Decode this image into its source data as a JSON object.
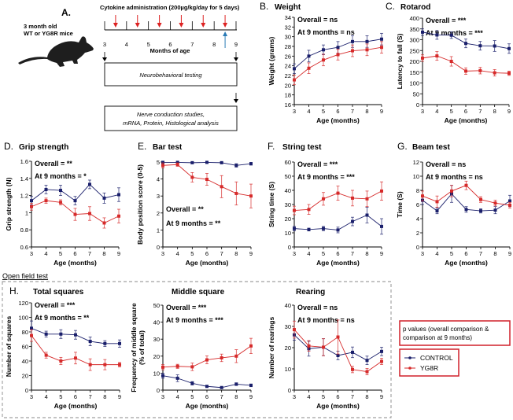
{
  "panel_a": {
    "letter": "A.",
    "mouse_label_line1": "3 month old",
    "mouse_label_line2": "WT or YG8R mice",
    "cytokine_title": "Cytokine administration (200µg/kg/day for 5 days)",
    "timeline_ticks": [
      "3",
      "4",
      "5",
      "6",
      "7",
      "8",
      "9"
    ],
    "timeline_label": "Months of age",
    "box1": "Neurobehavioral testing",
    "box2_line1": "Nerve conduction studies,",
    "box2_line2": "mRNA, Protein, Histological analysis",
    "icons": [
      "mouse-silhouette-icon",
      "red-down-arrow-icon",
      "blue-up-arrow-icon",
      "black-down-arrow-icon"
    ]
  },
  "open_field_label": "Open field test",
  "legend": {
    "note_line1": "p values (overall comparison &",
    "note_line2": "comparison at 9 months)",
    "series": [
      {
        "name": "CONTROL",
        "color": "#1a1f6b"
      },
      {
        "name": "YG8R",
        "color": "#d62a2a"
      }
    ],
    "box_color": "#d0202a"
  },
  "chart_data": [
    {
      "id": "B",
      "letter": "B.",
      "type": "line",
      "title": "Weight",
      "xlabel": "Age (months)",
      "ylabel": "Weight (grams)",
      "x": [
        3,
        4,
        5,
        6,
        7,
        8,
        9
      ],
      "ylim": [
        16,
        34
      ],
      "yticks": [
        16,
        18,
        20,
        22,
        24,
        26,
        28,
        30,
        32,
        34
      ],
      "annotations": [
        "Overall = ns",
        "At 9 months = ns"
      ],
      "series": [
        {
          "name": "CONTROL",
          "values": [
            23.4,
            26.0,
            27.3,
            27.8,
            29.0,
            29.0,
            29.5
          ],
          "err": [
            1.0,
            1.2,
            1.0,
            1.2,
            1.2,
            1.2,
            1.2
          ]
        },
        {
          "name": "YG8R",
          "values": [
            21.1,
            23.5,
            25.2,
            26.3,
            27.1,
            27.3,
            27.8
          ],
          "err": [
            1.0,
            1.1,
            1.2,
            1.1,
            1.2,
            1.2,
            1.2
          ]
        }
      ]
    },
    {
      "id": "C",
      "letter": "C.",
      "type": "line",
      "title": "Rotarod",
      "xlabel": "Age (months)",
      "ylabel": "Latency to fall (S)",
      "x": [
        3,
        4,
        5,
        6,
        7,
        8,
        9
      ],
      "ylim": [
        0,
        400
      ],
      "yticks": [
        0,
        50,
        100,
        150,
        200,
        250,
        300,
        350,
        400
      ],
      "annotations": [
        "Overall = ***",
        "At 9 months = ***"
      ],
      "series": [
        {
          "name": "CONTROL",
          "values": [
            335,
            322,
            321,
            283,
            272,
            271,
            259
          ],
          "err": [
            15,
            20,
            15,
            20,
            20,
            25,
            22
          ]
        },
        {
          "name": "YG8R",
          "values": [
            215,
            225,
            200,
            155,
            157,
            147,
            145
          ],
          "err": [
            15,
            20,
            22,
            15,
            15,
            15,
            10
          ]
        }
      ]
    },
    {
      "id": "D",
      "letter": "D.",
      "type": "line",
      "title": "Grip strength",
      "xlabel": "Age (months)",
      "ylabel": "Grip strength (N)",
      "x": [
        3,
        4,
        5,
        6,
        7,
        8,
        9
      ],
      "ylim": [
        0.6,
        1.6
      ],
      "yticks": [
        0.6,
        0.8,
        1.0,
        1.2,
        1.4,
        1.6
      ],
      "annotations": [
        "Overall = **",
        "At 9 months = *"
      ],
      "series": [
        {
          "name": "CONTROL",
          "values": [
            1.14,
            1.27,
            1.26,
            1.14,
            1.33,
            1.17,
            1.21
          ],
          "err": [
            0.05,
            0.05,
            0.06,
            0.05,
            0.05,
            0.06,
            0.08
          ]
        },
        {
          "name": "YG8R",
          "values": [
            1.07,
            1.14,
            1.12,
            0.98,
            0.99,
            0.88,
            0.96
          ],
          "err": [
            0.04,
            0.03,
            0.03,
            0.07,
            0.08,
            0.06,
            0.08
          ]
        }
      ]
    },
    {
      "id": "E",
      "letter": "E.",
      "type": "line",
      "title": "Bar test",
      "xlabel": "Age (months)",
      "ylabel": "Body position score (0-5)",
      "x": [
        3,
        4,
        5,
        6,
        7,
        8,
        9
      ],
      "ylim": [
        0,
        5
      ],
      "yticks": [
        0,
        1,
        2,
        3,
        4,
        5
      ],
      "annotations": [
        "Overall = **",
        "At 9 months = **"
      ],
      "series": [
        {
          "name": "CONTROL",
          "values": [
            4.98,
            4.98,
            4.96,
            4.98,
            4.96,
            4.8,
            4.9
          ],
          "err": [
            0.02,
            0.02,
            0.03,
            0.02,
            0.03,
            0.1,
            0.08
          ]
        },
        {
          "name": "YG8R",
          "values": [
            4.8,
            4.85,
            4.1,
            3.98,
            3.55,
            3.15,
            3.0
          ],
          "err": [
            0.15,
            0.1,
            0.28,
            0.35,
            0.65,
            0.68,
            0.7
          ]
        }
      ]
    },
    {
      "id": "F",
      "letter": "F.",
      "type": "line",
      "title": "String test",
      "xlabel": "Age (months)",
      "ylabel": "String time (S)",
      "x": [
        3,
        4,
        5,
        6,
        7,
        8,
        9
      ],
      "ylim": [
        0,
        60
      ],
      "yticks": [
        0,
        10,
        20,
        30,
        40,
        50,
        60
      ],
      "annotations": [
        "Overall = ***",
        "At 9 months = ***"
      ],
      "series": [
        {
          "name": "CONTROL",
          "values": [
            13,
            12.3,
            13,
            12,
            18,
            22.5,
            14.5
          ],
          "err": [
            1.5,
            1,
            1.5,
            2,
            3,
            5.5,
            5.5
          ]
        },
        {
          "name": "YG8R",
          "values": [
            25.8,
            26.5,
            34,
            38,
            34.5,
            34,
            39.5
          ],
          "err": [
            3,
            3.5,
            4.5,
            5,
            5.5,
            5.5,
            6.5
          ]
        }
      ]
    },
    {
      "id": "G",
      "letter": "G.",
      "type": "line",
      "title": "Beam test",
      "xlabel": "Age (months)",
      "ylabel": "Time (S)",
      "x": [
        3,
        4,
        5,
        6,
        7,
        8,
        9
      ],
      "ylim": [
        0,
        12
      ],
      "yticks": [
        0,
        2,
        4,
        6,
        8,
        10,
        12
      ],
      "annotations": [
        "Overall = ns",
        "At 9 months = ns"
      ],
      "series": [
        {
          "name": "CONTROL",
          "values": [
            6.6,
            5.1,
            7.5,
            5.3,
            5.1,
            5.2,
            6.5
          ],
          "err": [
            0.6,
            0.4,
            1.2,
            0.4,
            0.3,
            0.5,
            0.8
          ]
        },
        {
          "name": "YG8R",
          "values": [
            7.2,
            6.4,
            7.9,
            8.7,
            6.7,
            6.2,
            5.9
          ],
          "err": [
            0.7,
            0.8,
            0.8,
            0.6,
            0.4,
            0.4,
            0.4
          ]
        }
      ]
    },
    {
      "id": "H1",
      "letter": "H.",
      "type": "line",
      "title": "Total squares",
      "xlabel": "Age (months)",
      "ylabel": "Number of squares",
      "x": [
        3,
        4,
        5,
        6,
        7,
        8,
        9
      ],
      "ylim": [
        0,
        120
      ],
      "yticks": [
        0,
        20,
        40,
        60,
        80,
        100,
        120
      ],
      "annotations": [
        "Overall = ***",
        "At 9 months = **"
      ],
      "series": [
        {
          "name": "CONTROL",
          "values": [
            85,
            77,
            77,
            76,
            67,
            64,
            64
          ],
          "err": [
            10,
            4,
            6,
            6,
            6,
            4,
            5
          ]
        },
        {
          "name": "YG8R",
          "values": [
            75,
            48,
            40,
            44,
            35,
            35,
            35
          ],
          "err": [
            8,
            4,
            5,
            8,
            8,
            7,
            3
          ]
        }
      ]
    },
    {
      "id": "H2",
      "letter": "",
      "type": "line",
      "title": "Middle square",
      "xlabel": "Age (months)",
      "ylabel": "Frequency of middle square",
      "ylabel2": "(% of total)",
      "x": [
        3,
        4,
        5,
        6,
        7,
        8,
        9
      ],
      "ylim": [
        0,
        50
      ],
      "yticks": [
        0,
        10,
        20,
        30,
        40,
        50
      ],
      "annotations": [
        "Overall = ***",
        "At 9 months = ***"
      ],
      "series": [
        {
          "name": "CONTROL",
          "values": [
            8.5,
            7,
            4,
            2.2,
            1.5,
            3.5,
            2.8
          ],
          "err": [
            1.5,
            2,
            1,
            0.6,
            0.5,
            0.8,
            0.8
          ]
        },
        {
          "name": "YG8R",
          "values": [
            13.5,
            14,
            13.7,
            17.8,
            19,
            20,
            26
          ],
          "err": [
            1.5,
            1.2,
            2.2,
            2.3,
            2.2,
            3.8,
            4.5
          ]
        }
      ]
    },
    {
      "id": "H3",
      "letter": "",
      "type": "line",
      "title": "Rearing",
      "xlabel": "Age (months)",
      "ylabel": "Number of rearings",
      "x": [
        3,
        4,
        5,
        6,
        7,
        8,
        9
      ],
      "ylim": [
        0,
        40
      ],
      "yticks": [
        0,
        10,
        20,
        30,
        40
      ],
      "annotations": [
        "Overall = ns",
        "At 9 months = ns"
      ],
      "series": [
        {
          "name": "CONTROL",
          "values": [
            26,
            19.5,
            20.2,
            16.3,
            17.8,
            14,
            18.2
          ],
          "err": [
            2.5,
            3.5,
            4,
            2,
            2.5,
            2,
            2
          ]
        },
        {
          "name": "YG8R",
          "values": [
            28.5,
            20.8,
            20.2,
            25,
            9.7,
            8.7,
            13.5
          ],
          "err": [
            4,
            2.5,
            4,
            8,
            1.5,
            1.5,
            1.5
          ]
        }
      ]
    }
  ]
}
